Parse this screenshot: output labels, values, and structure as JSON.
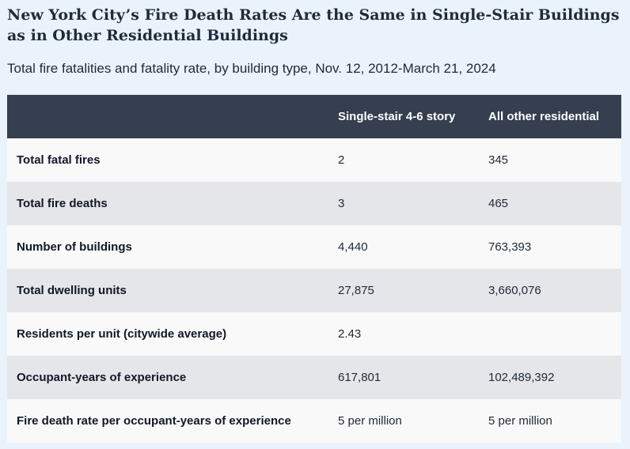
{
  "title": "New York City’s Fire Death Rates Are the Same in Single-Stair Buildings as in Other Residential Buildings",
  "subtitle": "Total fire fatalities and fatality rate, by building type, Nov. 12, 2012-March 21, 2024",
  "colors": {
    "header_bg": "#353f50",
    "row_light": "#f9f9f9",
    "row_dark": "#e4e6ea",
    "page_bg": "#eaf2fb"
  },
  "chart_data": {
    "type": "table",
    "columns": [
      "",
      "Single-stair 4-6 story",
      "All other residential"
    ],
    "rows": [
      [
        "Total fatal fires",
        "2",
        "345"
      ],
      [
        "Total fire deaths",
        "3",
        "465"
      ],
      [
        "Number of buildings",
        "4,440",
        "763,393"
      ],
      [
        "Total dwelling units",
        "27,875",
        "3,660,076"
      ],
      [
        "Residents per unit (citywide average)",
        "2.43",
        ""
      ],
      [
        "Occupant-years of experience",
        "617,801",
        "102,489,392"
      ],
      [
        "Fire death rate per occupant-years of experience",
        "5 per million",
        "5 per million"
      ]
    ]
  }
}
